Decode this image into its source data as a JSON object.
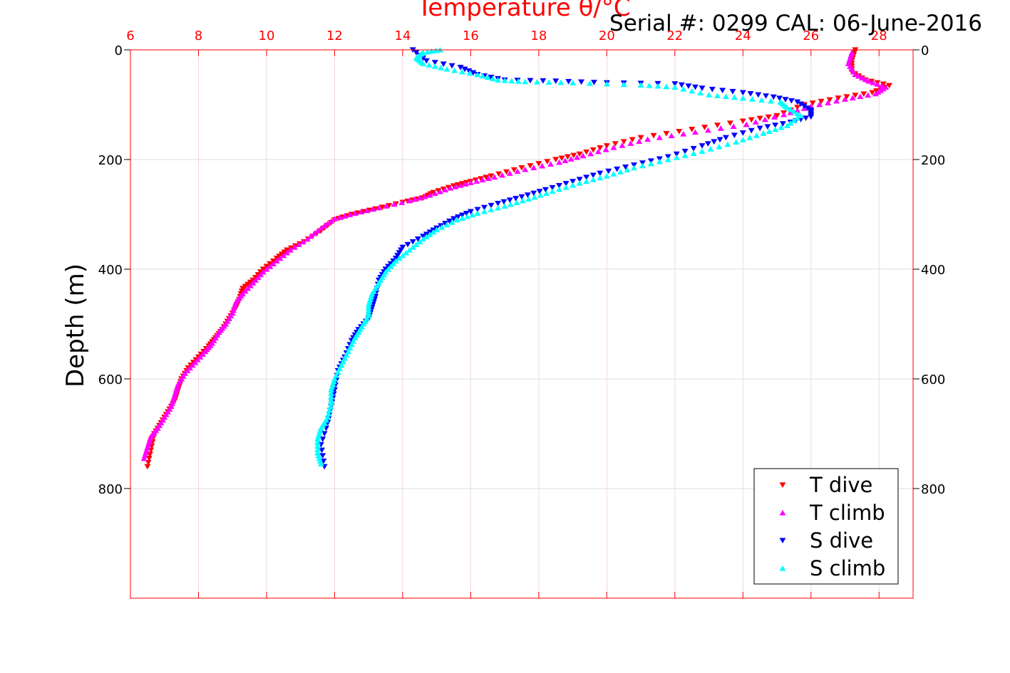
{
  "serial_text": "Serial #: 0299 CAL: 06-June-2016",
  "chart_data": {
    "type": "scatter",
    "title": "",
    "xlabel": "Temperature θ/°C",
    "ylabel": "Depth (m)",
    "xlim": [
      6,
      29
    ],
    "ylim": [
      0,
      1000
    ],
    "y_reversed": true,
    "xticks": [
      6,
      8,
      10,
      12,
      14,
      16,
      18,
      20,
      22,
      24,
      26,
      28
    ],
    "yticks": [
      0,
      200,
      400,
      600,
      800
    ],
    "grid": true,
    "legend_position": "bottom-right",
    "series": [
      {
        "name": "T dive",
        "color": "#ff0000",
        "marker": "triangle-down",
        "points": [
          [
            27.3,
            0
          ],
          [
            27.2,
            20
          ],
          [
            27.2,
            40
          ],
          [
            27.6,
            55
          ],
          [
            28.3,
            65
          ],
          [
            27.8,
            78
          ],
          [
            26.8,
            88
          ],
          [
            25.8,
            100
          ],
          [
            25.0,
            120
          ],
          [
            24.0,
            130
          ],
          [
            22.5,
            145
          ],
          [
            21.0,
            160
          ],
          [
            20.0,
            175
          ],
          [
            19.2,
            190
          ],
          [
            18.5,
            200
          ],
          [
            17.5,
            215
          ],
          [
            16.6,
            230
          ],
          [
            16.0,
            240
          ],
          [
            15.5,
            248
          ],
          [
            14.9,
            260
          ],
          [
            14.6,
            270
          ],
          [
            14.0,
            278
          ],
          [
            13.2,
            290
          ],
          [
            12.5,
            300
          ],
          [
            12.0,
            310
          ],
          [
            11.6,
            330
          ],
          [
            11.1,
            350
          ],
          [
            10.6,
            365
          ],
          [
            10.3,
            380
          ],
          [
            9.9,
            400
          ],
          [
            9.6,
            420
          ],
          [
            9.3,
            435
          ],
          [
            9.2,
            455
          ],
          [
            9.1,
            470
          ],
          [
            8.9,
            490
          ],
          [
            8.7,
            510
          ],
          [
            8.5,
            525
          ],
          [
            8.3,
            540
          ],
          [
            8.0,
            560
          ],
          [
            7.7,
            580
          ],
          [
            7.5,
            600
          ],
          [
            7.4,
            620
          ],
          [
            7.3,
            640
          ],
          [
            7.1,
            660
          ],
          [
            6.9,
            680
          ],
          [
            6.7,
            700
          ],
          [
            6.6,
            730
          ],
          [
            6.5,
            760
          ]
        ]
      },
      {
        "name": "T climb",
        "color": "#ff00ff",
        "marker": "triangle-up",
        "points": [
          [
            6.4,
            745
          ],
          [
            6.5,
            725
          ],
          [
            6.6,
            705
          ],
          [
            6.8,
            690
          ],
          [
            7.0,
            670
          ],
          [
            7.2,
            650
          ],
          [
            7.3,
            630
          ],
          [
            7.4,
            610
          ],
          [
            7.6,
            590
          ],
          [
            7.9,
            570
          ],
          [
            8.2,
            550
          ],
          [
            8.4,
            535
          ],
          [
            8.6,
            515
          ],
          [
            8.8,
            500
          ],
          [
            9.0,
            480
          ],
          [
            9.1,
            460
          ],
          [
            9.3,
            445
          ],
          [
            9.6,
            425
          ],
          [
            9.9,
            405
          ],
          [
            10.3,
            385
          ],
          [
            10.7,
            365
          ],
          [
            11.2,
            345
          ],
          [
            11.6,
            325
          ],
          [
            12.0,
            308
          ],
          [
            12.6,
            298
          ],
          [
            13.3,
            288
          ],
          [
            14.2,
            275
          ],
          [
            14.8,
            265
          ],
          [
            15.4,
            252
          ],
          [
            16.0,
            242
          ],
          [
            16.7,
            232
          ],
          [
            17.6,
            218
          ],
          [
            18.6,
            205
          ],
          [
            19.3,
            193
          ],
          [
            20.2,
            178
          ],
          [
            21.2,
            163
          ],
          [
            22.6,
            150
          ],
          [
            24.1,
            136
          ],
          [
            25.2,
            118
          ],
          [
            26.0,
            103
          ],
          [
            27.0,
            90
          ],
          [
            27.9,
            80
          ],
          [
            28.2,
            68
          ],
          [
            27.7,
            57
          ],
          [
            27.3,
            45
          ],
          [
            27.1,
            25
          ],
          [
            27.2,
            5
          ]
        ]
      },
      {
        "name": "S dive",
        "color": "#0000ff",
        "marker": "triangle-down",
        "points": [
          [
            14.3,
            0
          ],
          [
            14.7,
            20
          ],
          [
            15.7,
            32
          ],
          [
            16.2,
            45
          ],
          [
            17.0,
            55
          ],
          [
            18.5,
            57
          ],
          [
            20.0,
            60
          ],
          [
            22.0,
            62
          ],
          [
            22.8,
            70
          ],
          [
            24.0,
            78
          ],
          [
            24.9,
            86
          ],
          [
            25.6,
            95
          ],
          [
            26.0,
            110
          ],
          [
            26.0,
            122
          ],
          [
            25.4,
            132
          ],
          [
            24.5,
            143
          ],
          [
            23.5,
            160
          ],
          [
            22.8,
            175
          ],
          [
            21.8,
            195
          ],
          [
            20.8,
            210
          ],
          [
            19.8,
            225
          ],
          [
            19.0,
            240
          ],
          [
            18.2,
            255
          ],
          [
            17.5,
            268
          ],
          [
            16.8,
            280
          ],
          [
            16.0,
            295
          ],
          [
            15.5,
            308
          ],
          [
            15.0,
            325
          ],
          [
            14.6,
            340
          ],
          [
            14.0,
            360
          ],
          [
            13.8,
            380
          ],
          [
            13.5,
            400
          ],
          [
            13.3,
            420
          ],
          [
            13.2,
            450
          ],
          [
            13.1,
            470
          ],
          [
            13.0,
            490
          ],
          [
            12.7,
            510
          ],
          [
            12.5,
            530
          ],
          [
            12.3,
            560
          ],
          [
            12.1,
            585
          ],
          [
            12.0,
            620
          ],
          [
            11.9,
            650
          ],
          [
            11.8,
            680
          ],
          [
            11.6,
            720
          ],
          [
            11.7,
            760
          ]
        ]
      },
      {
        "name": "S climb",
        "color": "#00ffff",
        "marker": "triangle-up",
        "points": [
          [
            11.6,
            755
          ],
          [
            11.5,
            735
          ],
          [
            11.5,
            710
          ],
          [
            11.6,
            690
          ],
          [
            11.8,
            670
          ],
          [
            11.9,
            645
          ],
          [
            11.9,
            620
          ],
          [
            12.0,
            600
          ],
          [
            12.2,
            575
          ],
          [
            12.4,
            550
          ],
          [
            12.6,
            525
          ],
          [
            12.8,
            505
          ],
          [
            13.0,
            485
          ],
          [
            13.0,
            465
          ],
          [
            13.1,
            445
          ],
          [
            13.3,
            425
          ],
          [
            13.5,
            405
          ],
          [
            13.8,
            385
          ],
          [
            14.2,
            365
          ],
          [
            14.6,
            345
          ],
          [
            15.0,
            328
          ],
          [
            15.6,
            310
          ],
          [
            16.2,
            298
          ],
          [
            17.0,
            285
          ],
          [
            17.7,
            272
          ],
          [
            18.4,
            258
          ],
          [
            19.2,
            243
          ],
          [
            20.0,
            230
          ],
          [
            20.8,
            215
          ],
          [
            21.8,
            200
          ],
          [
            22.8,
            185
          ],
          [
            23.8,
            168
          ],
          [
            24.6,
            152
          ],
          [
            25.3,
            138
          ],
          [
            25.7,
            120
          ],
          [
            25.3,
            105
          ],
          [
            25.1,
            95
          ],
          [
            24.0,
            88
          ],
          [
            23.0,
            82
          ],
          [
            22.0,
            68
          ],
          [
            21.0,
            64
          ],
          [
            19.0,
            60
          ],
          [
            17.6,
            58
          ],
          [
            16.8,
            55
          ],
          [
            16.2,
            45
          ],
          [
            15.3,
            35
          ],
          [
            14.6,
            25
          ],
          [
            14.4,
            15
          ],
          [
            14.6,
            5
          ],
          [
            15.1,
            0
          ]
        ]
      }
    ]
  }
}
